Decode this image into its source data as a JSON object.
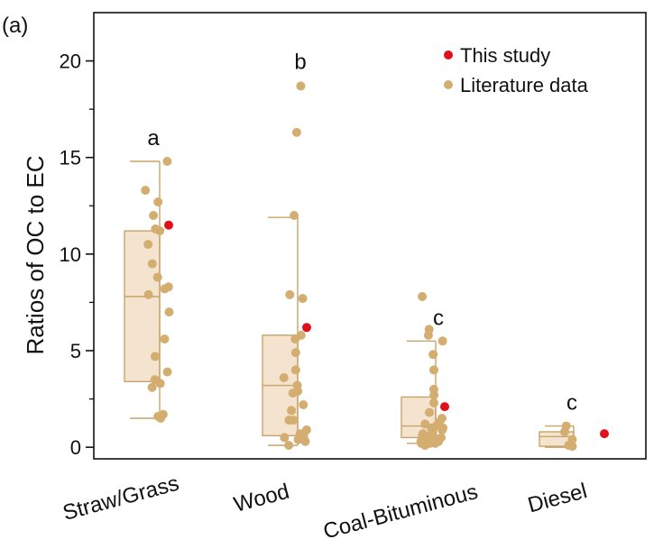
{
  "panel_label": "(a)",
  "chart_data": {
    "type": "box-scatter",
    "ylabel": "Ratios of OC to EC",
    "xlabel": "",
    "ylim": [
      -0.6,
      22.5
    ],
    "yticks": [
      0,
      5,
      10,
      15,
      20
    ],
    "grid": false,
    "legend_placement": "top-right",
    "colors": {
      "literature": "#d4ad70",
      "study": "#e0101c",
      "box_fill": "#f3e3cf",
      "box_line": "#c8a46a",
      "axis": "#111111"
    },
    "legend": [
      {
        "label": "This study",
        "color": "#e0101c"
      },
      {
        "label": "Literature data",
        "color": "#d4ad70"
      }
    ],
    "categories": [
      "Straw/Grass",
      "Wood",
      "Coal-Bituminous",
      "Diesel"
    ],
    "groups": [
      {
        "category": "Straw/Grass",
        "letter": "a",
        "box": {
          "whisker_low": 1.5,
          "q1": 3.4,
          "median": 7.8,
          "q3": 11.2,
          "whisker_high": 14.8
        },
        "this_study": [
          11.5
        ],
        "literature": [
          14.8,
          13.3,
          12.7,
          12.0,
          11.3,
          11.2,
          10.5,
          9.5,
          8.8,
          8.3,
          8.2,
          7.9,
          7.0,
          5.6,
          4.7,
          3.9,
          3.5,
          3.3,
          3.1,
          1.7,
          1.6,
          1.5
        ]
      },
      {
        "category": "Wood",
        "letter": "b",
        "box": {
          "whisker_low": 0.1,
          "q1": 0.6,
          "median": 3.2,
          "q3": 5.8,
          "whisker_high": 11.9
        },
        "this_study": [
          6.2
        ],
        "literature": [
          18.7,
          16.3,
          12.0,
          7.9,
          7.7,
          5.8,
          5.6,
          4.9,
          4.0,
          3.6,
          3.2,
          2.9,
          2.8,
          2.2,
          1.9,
          1.4,
          1.4,
          0.9,
          0.7,
          0.6,
          0.5,
          0.5,
          0.4,
          0.3,
          0.1
        ]
      },
      {
        "category": "Coal-Bituminous",
        "letter": "c",
        "box": {
          "whisker_low": 0.2,
          "q1": 0.5,
          "median": 1.1,
          "q3": 2.6,
          "whisker_high": 5.5
        },
        "this_study": [
          2.1
        ],
        "literature": [
          7.8,
          6.1,
          5.8,
          5.5,
          4.8,
          4.0,
          3.0,
          2.7,
          2.3,
          1.8,
          1.5,
          1.3,
          1.2,
          1.2,
          1.1,
          1.0,
          1.0,
          0.9,
          0.8,
          0.8,
          0.7,
          0.7,
          0.6,
          0.6,
          0.5,
          0.5,
          0.4,
          0.4,
          0.3,
          0.3,
          0.2,
          0.2,
          0.2,
          0.1
        ]
      },
      {
        "category": "Diesel",
        "letter": "c",
        "box": {
          "whisker_low": 0.0,
          "q1": 0.05,
          "median": 0.55,
          "q3": 0.8,
          "whisker_high": 1.1
        },
        "this_study": [
          0.7
        ],
        "literature": [
          1.1,
          0.8,
          0.4,
          0.1,
          0.05
        ]
      }
    ]
  }
}
